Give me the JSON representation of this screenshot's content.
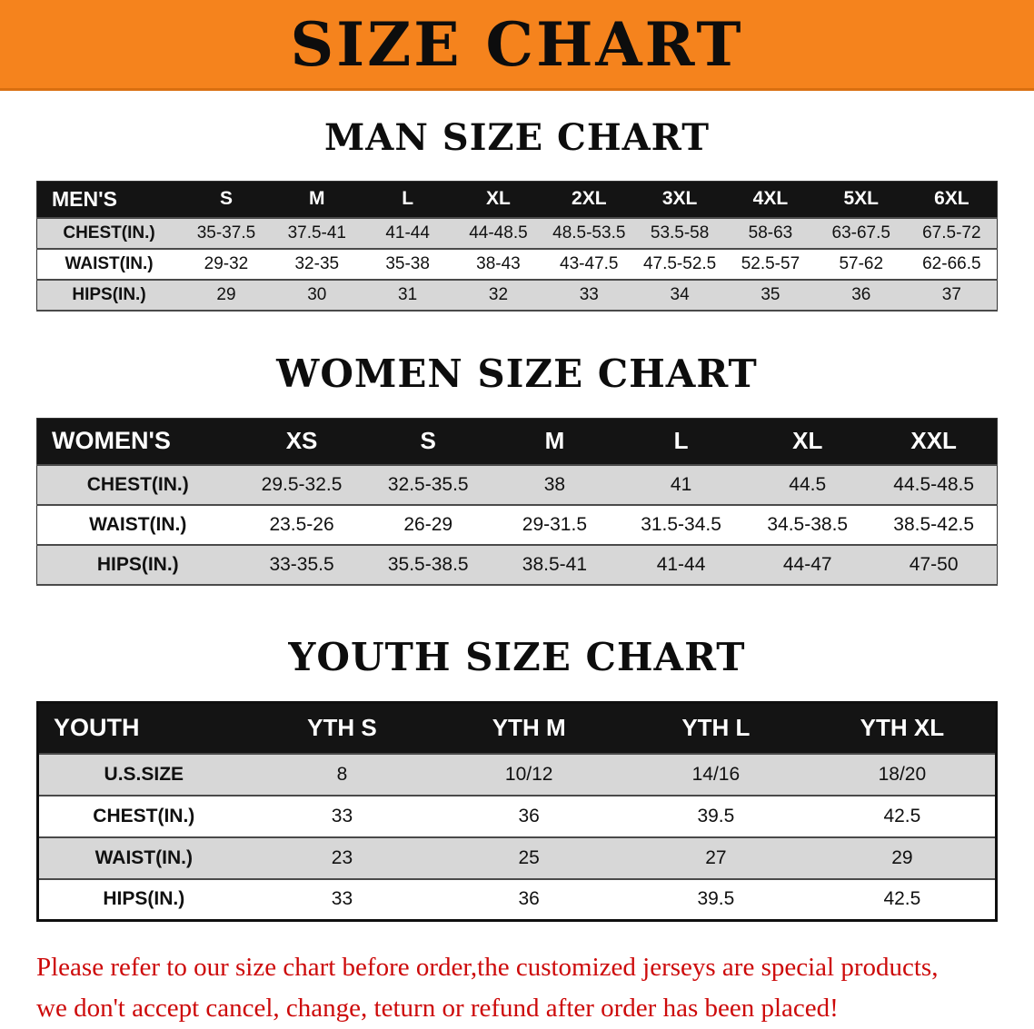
{
  "banner": {
    "title": "SIZE CHART"
  },
  "colors": {
    "banner_orange": "#f5831d",
    "table_header_black": "#141414",
    "row_gray": "#d7d7d7",
    "disclaimer_red": "#cd0a0a"
  },
  "sections": {
    "men": {
      "heading": "MAN SIZE CHART",
      "table": {
        "header": [
          "MEN'S",
          "S",
          "M",
          "L",
          "XL",
          "2XL",
          "3XL",
          "4XL",
          "5XL",
          "6XL"
        ],
        "rows": [
          {
            "label": "CHEST(IN.)",
            "values": [
              "35-37.5",
              "37.5-41",
              "41-44",
              "44-48.5",
              "48.5-53.5",
              "53.5-58",
              "58-63",
              "63-67.5",
              "67.5-72"
            ]
          },
          {
            "label": "WAIST(IN.)",
            "values": [
              "29-32",
              "32-35",
              "35-38",
              "38-43",
              "43-47.5",
              "47.5-52.5",
              "52.5-57",
              "57-62",
              "62-66.5"
            ]
          },
          {
            "label": "HIPS(IN.)",
            "values": [
              "29",
              "30",
              "31",
              "32",
              "33",
              "34",
              "35",
              "36",
              "37"
            ]
          }
        ]
      }
    },
    "women": {
      "heading": "WOMEN SIZE CHART",
      "table": {
        "header": [
          "WOMEN'S",
          "XS",
          "S",
          "M",
          "L",
          "XL",
          "XXL"
        ],
        "rows": [
          {
            "label": "CHEST(IN.)",
            "values": [
              "29.5-32.5",
              "32.5-35.5",
              "38",
              "41",
              "44.5",
              "44.5-48.5"
            ]
          },
          {
            "label": "WAIST(IN.)",
            "values": [
              "23.5-26",
              "26-29",
              "29-31.5",
              "31.5-34.5",
              "34.5-38.5",
              "38.5-42.5"
            ]
          },
          {
            "label": "HIPS(IN.)",
            "values": [
              "33-35.5",
              "35.5-38.5",
              "38.5-41",
              "41-44",
              "44-47",
              "47-50"
            ]
          }
        ]
      }
    },
    "youth": {
      "heading": "YOUTH SIZE CHART",
      "table": {
        "header": [
          "YOUTH",
          "YTH S",
          "YTH M",
          "YTH L",
          "YTH XL"
        ],
        "rows": [
          {
            "label": "U.S.SIZE",
            "values": [
              "8",
              "10/12",
              "14/16",
              "18/20"
            ]
          },
          {
            "label": "CHEST(IN.)",
            "values": [
              "33",
              "36",
              "39.5",
              "42.5"
            ]
          },
          {
            "label": "WAIST(IN.)",
            "values": [
              "23",
              "25",
              "27",
              "29"
            ]
          },
          {
            "label": "HIPS(IN.)",
            "values": [
              "33",
              "36",
              "39.5",
              "42.5"
            ]
          }
        ]
      }
    }
  },
  "disclaimer": {
    "line1": "Please refer to our size chart before order,the customized jerseys are special products,",
    "line2": "we don't accept cancel, change, teturn or refund after order has been placed!"
  }
}
